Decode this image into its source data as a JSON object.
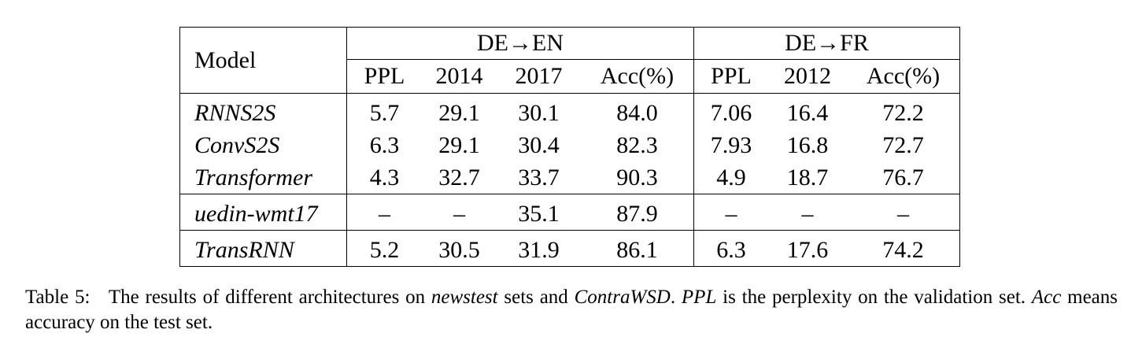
{
  "table": {
    "model_header": "Model",
    "groups": [
      {
        "label": "DE→EN",
        "columns": [
          "PPL",
          "2014",
          "2017",
          "Acc(%)"
        ]
      },
      {
        "label": "DE→FR",
        "columns": [
          "PPL",
          "2012",
          "Acc(%)"
        ]
      }
    ],
    "sections": [
      [
        {
          "model": "RNNS2S",
          "values": [
            "5.7",
            "29.1",
            "30.1",
            "84.0",
            "7.06",
            "16.4",
            "72.2"
          ],
          "bold": [
            false,
            false,
            false,
            false,
            false,
            false,
            false
          ]
        },
        {
          "model": "ConvS2S",
          "values": [
            "6.3",
            "29.1",
            "30.4",
            "82.3",
            "7.93",
            "16.8",
            "72.7"
          ],
          "bold": [
            false,
            false,
            false,
            false,
            false,
            false,
            false
          ]
        },
        {
          "model": "Transformer",
          "values": [
            "4.3",
            "32.7",
            "33.7",
            "90.3",
            "4.9",
            "18.7",
            "76.7"
          ],
          "bold": [
            true,
            true,
            false,
            true,
            true,
            true,
            true
          ]
        }
      ],
      [
        {
          "model": "uedin-wmt17",
          "values": [
            "–",
            "–",
            "35.1",
            "87.9",
            "–",
            "–",
            "–"
          ],
          "bold": [
            false,
            false,
            true,
            false,
            false,
            false,
            false
          ]
        }
      ],
      [
        {
          "model": "TransRNN",
          "values": [
            "5.2",
            "30.5",
            "31.9",
            "86.1",
            "6.3",
            "17.6",
            "74.2"
          ],
          "bold": [
            false,
            false,
            false,
            false,
            false,
            false,
            false
          ]
        }
      ]
    ]
  },
  "caption": {
    "label": "Table 5:",
    "t1": "The results of different architectures on ",
    "i1": "newstest",
    "t2": " sets and ",
    "i2": "ContraWSD",
    "t3": ". ",
    "i3": "PPL",
    "t4": " is the perplexity on the validation set. ",
    "i4": "Acc",
    "t5": " means accuracy on the test set."
  }
}
